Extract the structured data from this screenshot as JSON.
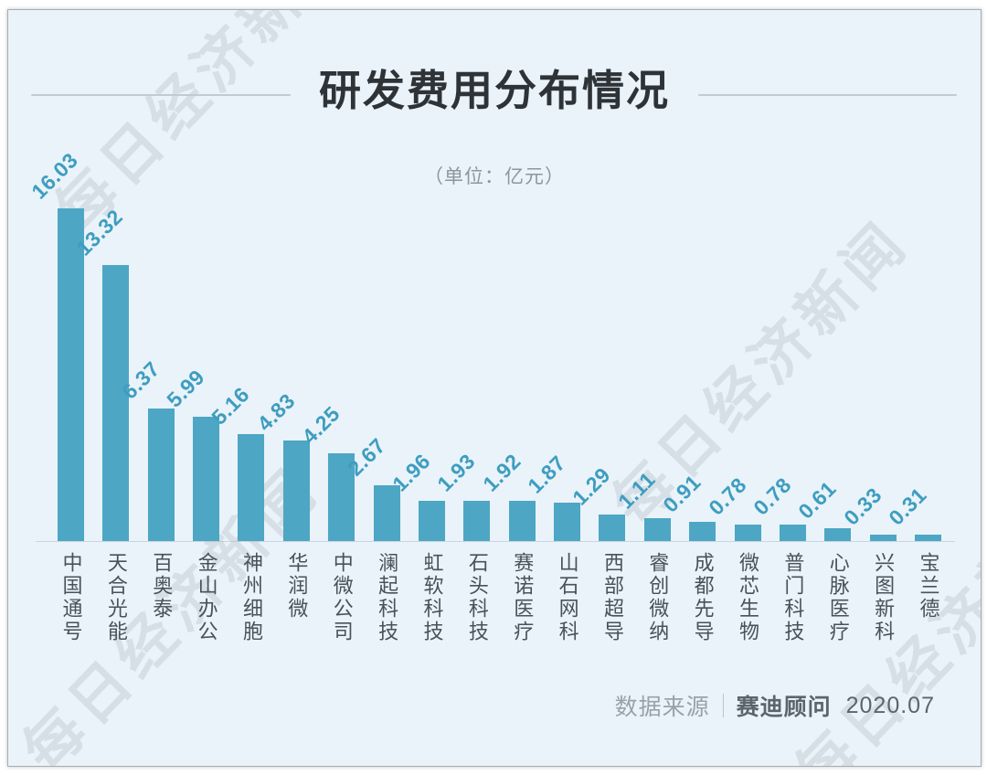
{
  "watermark": {
    "text": "每日经济新闻"
  },
  "header": {
    "title": "研发费用分布情况",
    "subtitle": "（单位：亿元）"
  },
  "chart_data": {
    "type": "bar",
    "title": "研发费用分布情况",
    "unit_label": "（单位：亿元）",
    "categories": [
      "中国通号",
      "天合光能",
      "百奥泰",
      "金山办公",
      "神州细胞",
      "华润微",
      "中微公司",
      "澜起科技",
      "虹软科技",
      "石头科技",
      "赛诺医疗",
      "山石网科",
      "西部超导",
      "睿创微纳",
      "成都先导",
      "微芯生物",
      "普门科技",
      "心脉医疗",
      "兴图新科",
      "宝兰德"
    ],
    "values": [
      16.03,
      13.32,
      6.37,
      5.99,
      5.16,
      4.83,
      4.25,
      2.67,
      1.96,
      1.93,
      1.92,
      1.87,
      1.29,
      1.11,
      0.91,
      0.78,
      0.78,
      0.61,
      0.33,
      0.31
    ],
    "xlabel": "",
    "ylabel": "",
    "ylim": [
      0,
      17
    ],
    "grid": false,
    "legend": false,
    "value_labels_shown": true,
    "value_label_rotation": -45,
    "category_label_orientation": "vertical",
    "bar_color": "#4da6c4",
    "value_label_color": "#3e9dc0",
    "category_label_color": "#49525a"
  },
  "footer": {
    "source_label": "数据来源",
    "source_name": "赛迪顾问",
    "date": "2020.07"
  }
}
